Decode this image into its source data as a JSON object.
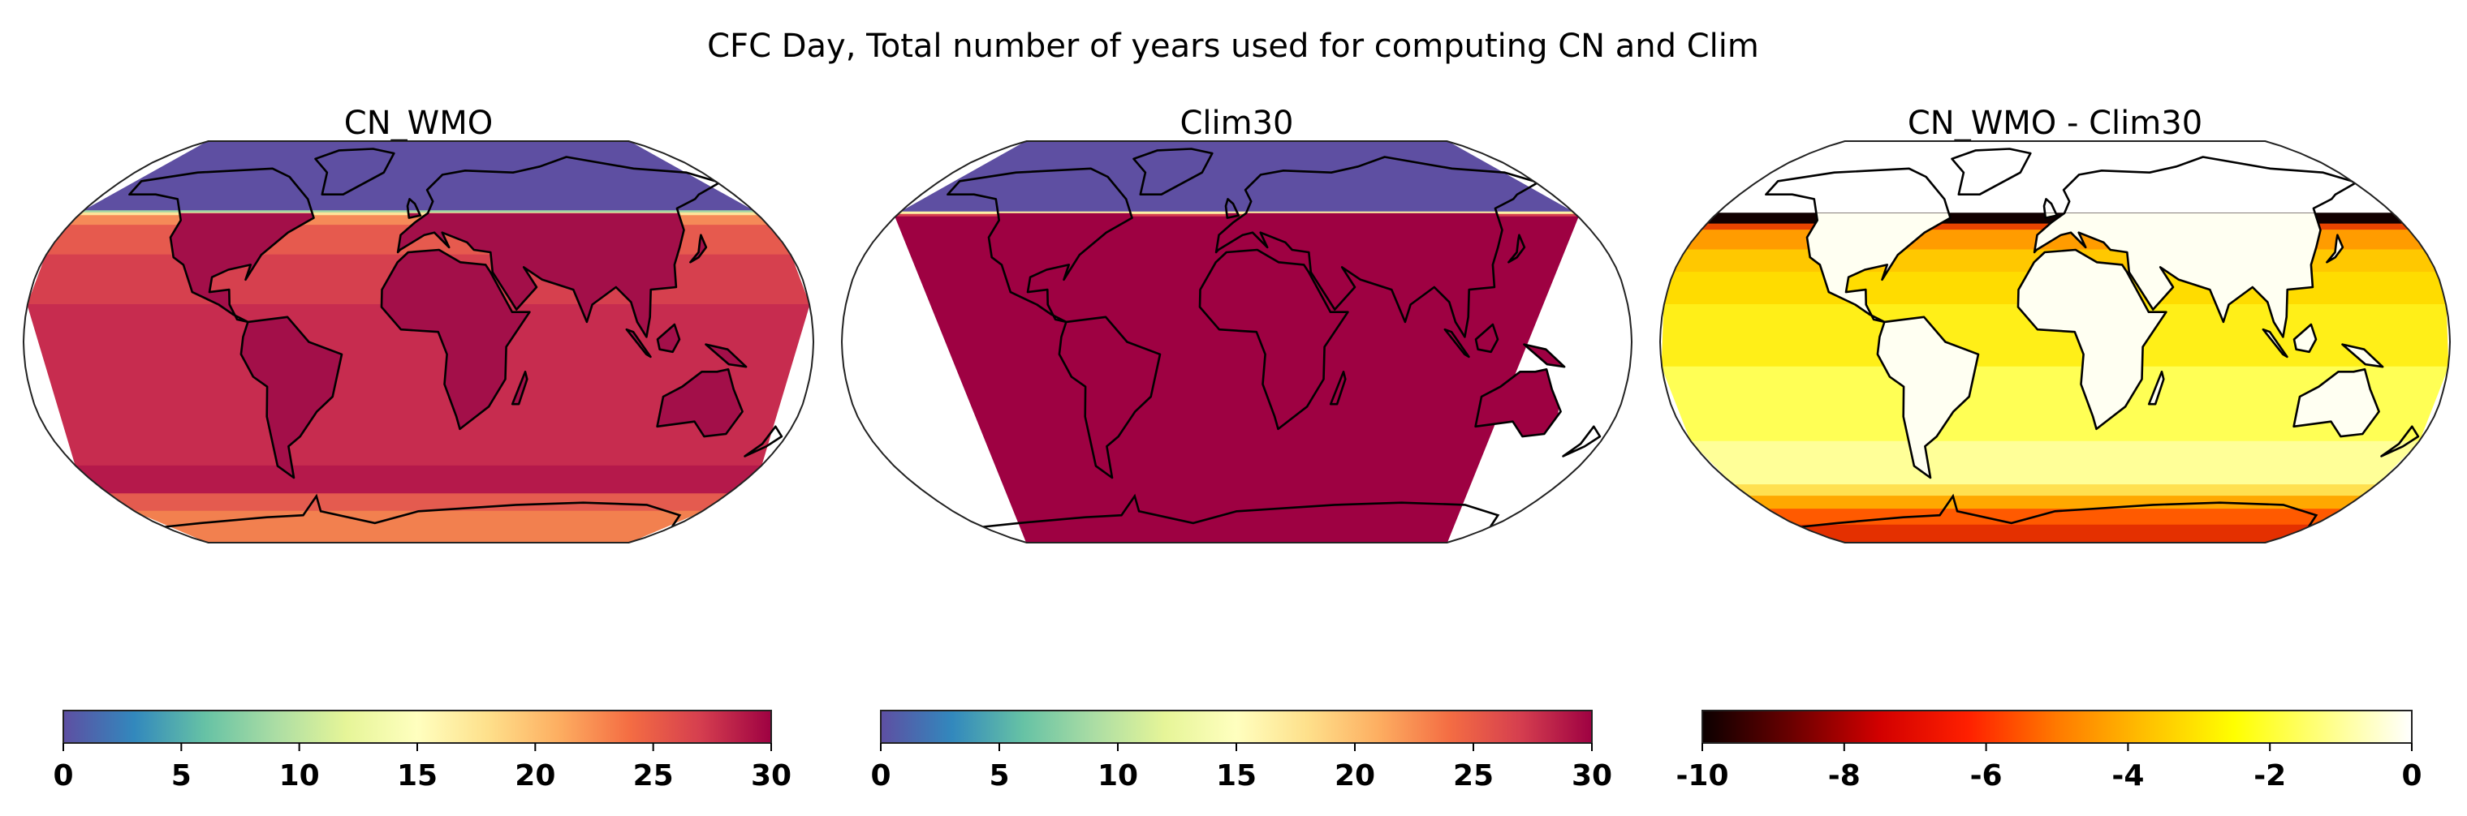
{
  "title": "CFC Day, Total number of years used for computing CN and Clim",
  "chart_data": [
    {
      "type": "heatmap",
      "title": "CN_WMO",
      "projection": "Robinson",
      "colorbar": {
        "min": 0,
        "max": 30,
        "ticks": [
          "0",
          "5",
          "10",
          "15",
          "20",
          "25",
          "30"
        ],
        "colors": [
          "#5e4fa2",
          "#3288bd",
          "#66c2a5",
          "#abdda4",
          "#e6f598",
          "#ffffbf",
          "#fee08b",
          "#fdae61",
          "#f46d43",
          "#d53e4f",
          "#9e0142"
        ]
      },
      "description_values": {
        "north_of_52N": 0,
        "ocean_typical": 27,
        "land_typical": 29,
        "antarctic_coast": 23
      }
    },
    {
      "type": "heatmap",
      "title": "Clim30",
      "projection": "Robinson",
      "colorbar": {
        "min": 0,
        "max": 30,
        "ticks": [
          "0",
          "5",
          "10",
          "15",
          "20",
          "25",
          "30"
        ],
        "colors": [
          "#5e4fa2",
          "#3288bd",
          "#66c2a5",
          "#abdda4",
          "#e6f598",
          "#ffffbf",
          "#fee08b",
          "#fdae61",
          "#f46d43",
          "#d53e4f",
          "#9e0142"
        ]
      },
      "description_values": {
        "north_of_52N": 0,
        "elsewhere": 30
      }
    },
    {
      "type": "heatmap",
      "title": "CN_WMO - Clim30",
      "projection": "Robinson",
      "colorbar": {
        "min": -10,
        "max": 0,
        "ticks": [
          "-10",
          "-8",
          "-6",
          "-4",
          "-2",
          "0"
        ],
        "colors": [
          "#0b0000",
          "#6a0000",
          "#d20000",
          "#ff2000",
          "#ff7a00",
          "#ffc000",
          "#ffff00",
          "#ffff80",
          "#ffffff"
        ]
      },
      "description_values": {
        "north_of_52N": 0,
        "band_48_52N": -10,
        "midlatitudes": -4,
        "tropics_ocean": -2.5,
        "land": 0,
        "antarctic_coast": -6
      }
    }
  ]
}
